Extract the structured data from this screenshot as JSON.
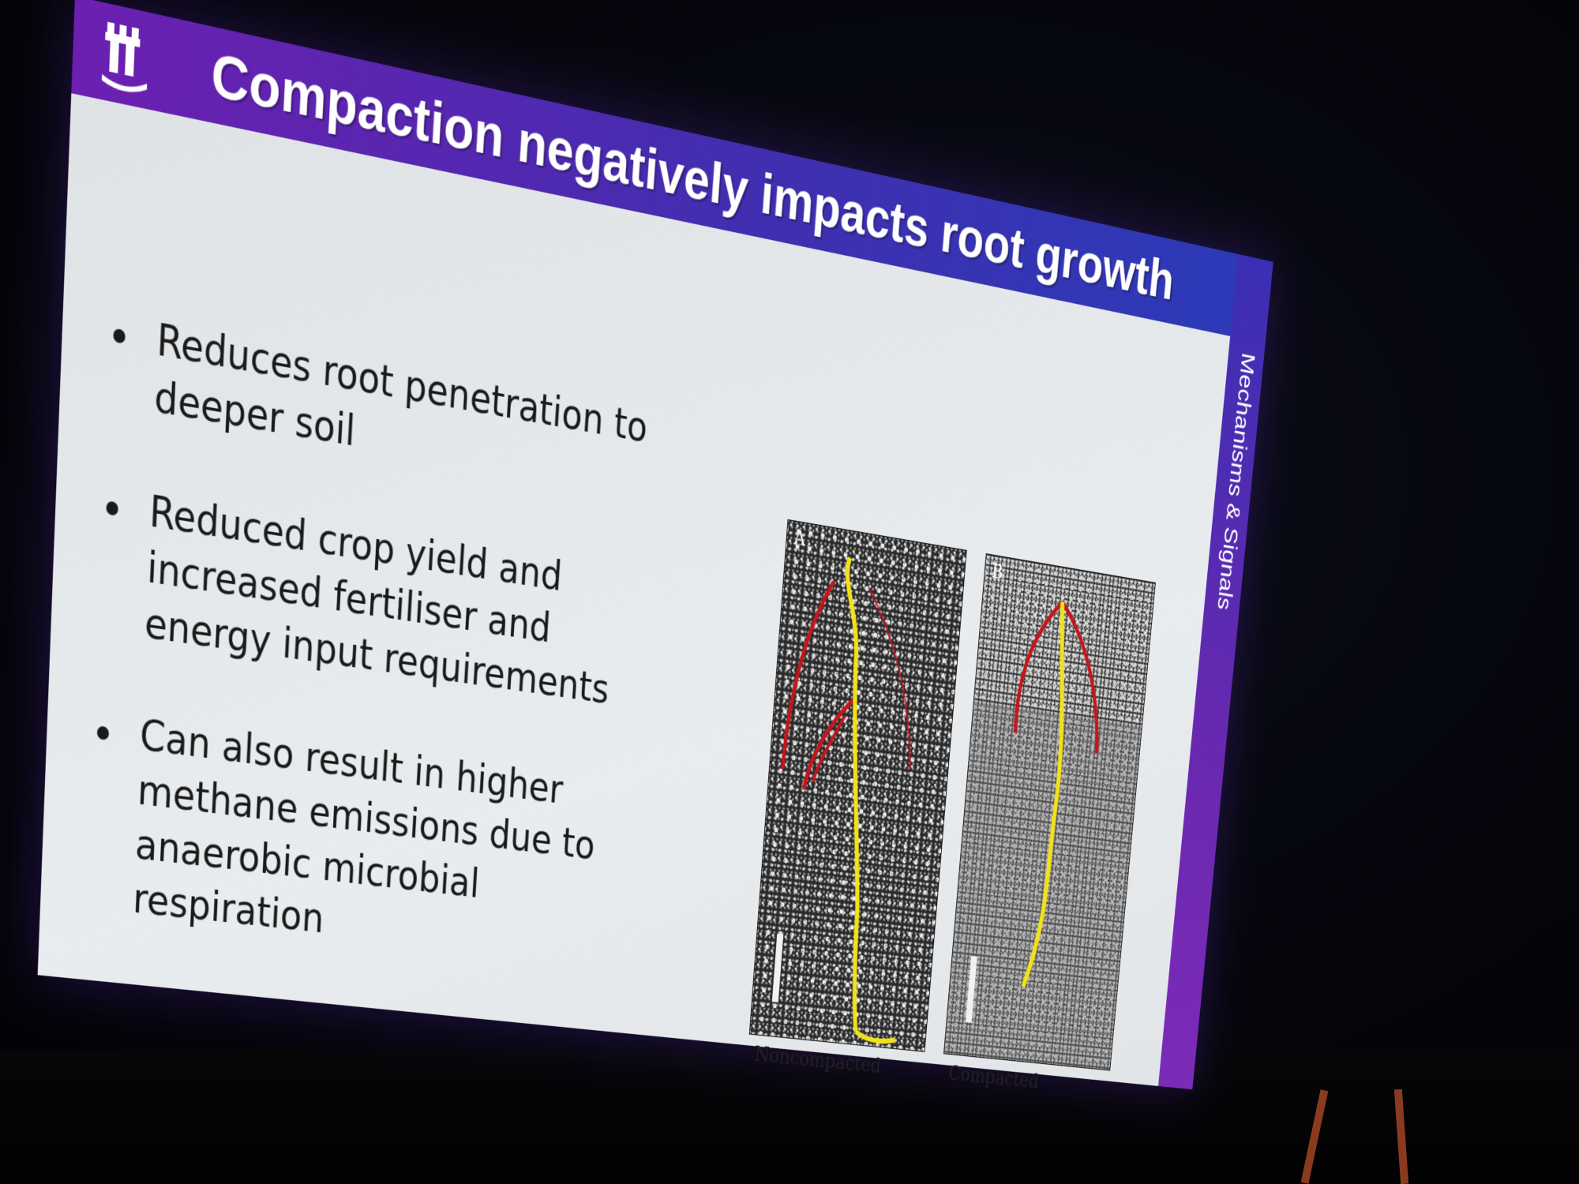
{
  "slide": {
    "title": "Compaction negatively impacts root growth",
    "side_label": "Mechanisms & Signals",
    "bullets": [
      "Reduces root penetration to deeper soil",
      "Reduced crop yield and increased fertiliser and energy input requirements",
      "Can also result in higher methane emissions due to anaerobic microbial respiration"
    ],
    "figure": {
      "panel_a_letter": "A",
      "panel_b_letter": "B",
      "caption_a": "Noncompacted",
      "caption_b": "Compacted"
    }
  },
  "colors": {
    "banner_purple": "#6c1fb0",
    "banner_blue": "#2a3bb8",
    "content_background": "#e6e9eb",
    "primary_root": "#f2e21a",
    "lateral_root": "#c4161c"
  },
  "icons": [
    "university-tower-logo"
  ]
}
